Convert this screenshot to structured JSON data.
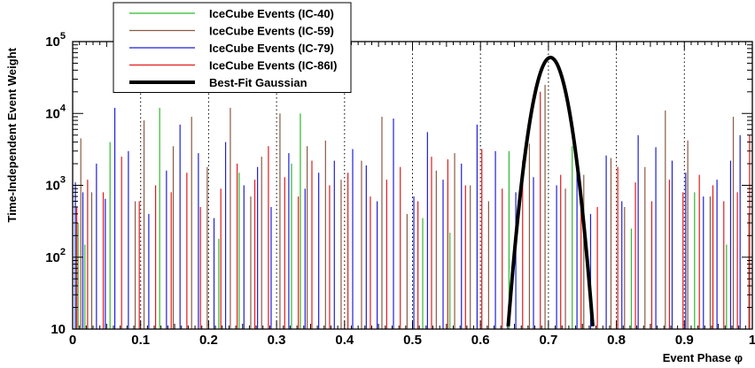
{
  "chart_data": {
    "type": "bar",
    "xlabel": "Event Phase φ",
    "ylabel": "Time-Independent Event Weight",
    "xlim": [
      0,
      1
    ],
    "ylim": [
      10,
      100000
    ],
    "log_y": true,
    "x_ticks": [
      "0",
      "0.1",
      "0.2",
      "0.3",
      "0.4",
      "0.5",
      "0.6",
      "0.7",
      "0.8",
      "0.9",
      "1"
    ],
    "y_ticks": [
      {
        "base": "10",
        "exp": ""
      },
      {
        "base": "10",
        "exp": "2"
      },
      {
        "base": "10",
        "exp": "3"
      },
      {
        "base": "10",
        "exp": "4"
      },
      {
        "base": "10",
        "exp": "5"
      }
    ],
    "grid": "vertical dotted lines at x ticks 0.1–0.9",
    "legend_position": "top-left",
    "legend": [
      {
        "label": "IceCube Events (IC-40)",
        "color": "#2eb82e",
        "style": "thin"
      },
      {
        "label": "IceCube Events (IC-59)",
        "color": "#8b5a44",
        "style": "thin"
      },
      {
        "label": "IceCube Events (IC-79)",
        "color": "#1f1fd6",
        "style": "thin"
      },
      {
        "label": "IceCube Events (IC-86I)",
        "color": "#e41a1a",
        "style": "thin"
      },
      {
        "label": "Best-Fit Gaussian",
        "color": "#000000",
        "style": "thick"
      }
    ],
    "series": [
      {
        "name": "IceCube Events (IC-40)",
        "color": "#2eb82e",
        "x": [
          0.008,
          0.018,
          0.055,
          0.128,
          0.215,
          0.245,
          0.322,
          0.335,
          0.515,
          0.555,
          0.642,
          0.735,
          0.822,
          0.915,
          0.962
        ],
        "y": [
          300,
          150,
          4000,
          12000,
          180,
          1500,
          2000,
          10000,
          350,
          220,
          3000,
          3500,
          250,
          800,
          150
        ]
      },
      {
        "name": "IceCube Events (IC-59)",
        "color": "#8b5a44",
        "x": [
          0.012,
          0.028,
          0.092,
          0.105,
          0.148,
          0.175,
          0.198,
          0.232,
          0.262,
          0.278,
          0.305,
          0.345,
          0.372,
          0.395,
          0.425,
          0.455,
          0.492,
          0.535,
          0.562,
          0.585,
          0.612,
          0.672,
          0.695,
          0.725,
          0.752,
          0.792,
          0.812,
          0.842,
          0.872,
          0.905,
          0.938,
          0.972,
          0.995
        ],
        "y": [
          4500,
          800,
          600,
          8000,
          3500,
          9000,
          1800,
          12000,
          700,
          2500,
          10000,
          3500,
          4200,
          1200,
          2200,
          9000,
          400,
          1600,
          2800,
          1000,
          600,
          3800,
          25000,
          900,
          1400,
          2400,
          500,
          1800,
          11000,
          4200,
          700,
          9000,
          400
        ]
      },
      {
        "name": "IceCube Events (IC-79)",
        "color": "#1f1fd6",
        "x": [
          0.004,
          0.015,
          0.035,
          0.048,
          0.062,
          0.082,
          0.112,
          0.138,
          0.158,
          0.185,
          0.208,
          0.225,
          0.252,
          0.272,
          0.292,
          0.318,
          0.342,
          0.362,
          0.385,
          0.412,
          0.432,
          0.448,
          0.472,
          0.502,
          0.522,
          0.545,
          0.572,
          0.595,
          0.622,
          0.652,
          0.678,
          0.712,
          0.742,
          0.762,
          0.785,
          0.808,
          0.832,
          0.858,
          0.882,
          0.902,
          0.928,
          0.948,
          0.968,
          0.982
        ],
        "y": [
          1100,
          800,
          2000,
          650,
          12000,
          3000,
          400,
          1600,
          7000,
          2800,
          350,
          4000,
          1000,
          1800,
          500,
          2800,
          900,
          1500,
          2200,
          3200,
          1900,
          600,
          8500,
          700,
          5500,
          1200,
          2000,
          7000,
          3000,
          800,
          1300,
          1000,
          1800,
          400,
          2600,
          600,
          5000,
          3400,
          2200,
          1500,
          700,
          1200,
          2200,
          5000
        ]
      },
      {
        "name": "IceCube Events (IC-86I)",
        "color": "#e41a1a",
        "x": [
          0.006,
          0.022,
          0.045,
          0.072,
          0.098,
          0.122,
          0.145,
          0.168,
          0.188,
          0.218,
          0.242,
          0.268,
          0.288,
          0.312,
          0.332,
          0.352,
          0.378,
          0.405,
          0.438,
          0.462,
          0.482,
          0.508,
          0.528,
          0.552,
          0.578,
          0.602,
          0.632,
          0.662,
          0.688,
          0.718,
          0.748,
          0.772,
          0.802,
          0.828,
          0.852,
          0.878,
          0.898,
          0.922,
          0.942,
          0.958,
          0.978,
          0.996
        ],
        "y": [
          500,
          1200,
          800,
          2500,
          600,
          1000,
          800,
          1500,
          500,
          900,
          2000,
          1200,
          3500,
          1300,
          700,
          2200,
          1000,
          1500,
          700,
          1200,
          1800,
          600,
          2500,
          2300,
          1000,
          3200,
          900,
          2200,
          20000,
          1400,
          800,
          500,
          1800,
          1100,
          600,
          1200,
          800,
          1400,
          1000,
          600,
          800,
          5000
        ]
      },
      {
        "name": "Best-Fit Gaussian",
        "color": "#000000",
        "gaussian": {
          "mean": 0.703,
          "sigma": 0.015,
          "peak": 60000
        }
      }
    ]
  }
}
